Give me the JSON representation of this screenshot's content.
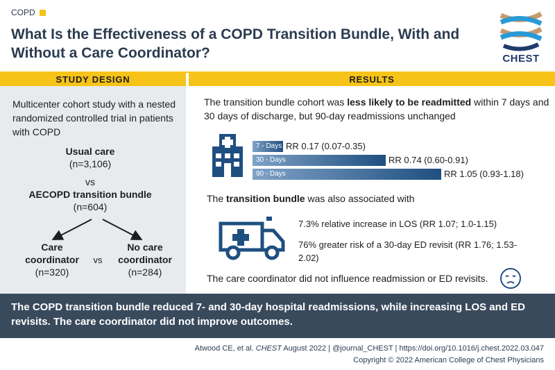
{
  "header": {
    "category": "COPD",
    "title": "What Is the Effectiveness of a COPD Transition Bundle, With and Without a Care Coordinator?",
    "logo_text": "CHEST"
  },
  "study_design": {
    "heading": "STUDY DESIGN",
    "intro": "Multicenter cohort study with a nested randomized controlled trial in patients with COPD",
    "usual_care_label": "Usual care",
    "usual_care_n": "(n=3,106)",
    "vs_1": "vs",
    "bundle_label": "AECOPD transition bundle",
    "bundle_n": "(n=604)",
    "care_coord_line1": "Care",
    "care_coord_line2": "coordinator",
    "care_coord_n": "(n=320)",
    "vs_2": "vs",
    "no_coord_line1": "No care",
    "no_coord_line2": "coordinator",
    "no_coord_n": "(n=284)"
  },
  "results": {
    "heading": "RESULTS",
    "intro_pre": "The transition bundle cohort was ",
    "intro_bold": "less likely to be readmitted",
    "intro_post": " within 7 days and 30 days of discharge, but 90-day readmissions unchanged",
    "assoc_pre": "The ",
    "assoc_bold": "transition bundle",
    "assoc_post": " was also associated with",
    "los": "7.3% relative increase in LOS (RR 1.07; 1.0-1.15)",
    "ed_revisit": "76% greater risk of a 30-day ED revisit (RR 1.76; 1.53-2.02)",
    "coordinator_note": "The care coordinator did not influence readmission or ED revisits."
  },
  "chart_data": {
    "type": "bar",
    "orientation": "horizontal",
    "categories": [
      "7 - Days",
      "30 - Days",
      "90 - Days"
    ],
    "values": [
      0.17,
      0.74,
      1.05
    ],
    "labels": [
      "RR 0.17 (0.07-0.35)",
      "RR 0.74 (0.60-0.91)",
      "RR 1.05 (0.93-1.18)"
    ],
    "ci_low": [
      0.07,
      0.6,
      0.93
    ],
    "ci_high": [
      0.35,
      0.91,
      1.18
    ],
    "title": "",
    "xlabel": "",
    "ylabel": "",
    "xlim": [
      0,
      1.05
    ]
  },
  "footer": {
    "conclusion": "The COPD transition bundle reduced 7- and 30-day hospital readmissions, while increasing LOS and ED revisits. The care coordinator did not improve outcomes.",
    "cite_authors": "Atwood CE, et al. ",
    "cite_journal": "CHEST",
    "cite_rest": " August 2022  |  @journal_CHEST  |  https://doi.org/10.1016/j.chest.2022.03.047",
    "copyright": "Copyright © 2022 American College of Chest Physicians"
  },
  "colors": {
    "accent": "#f6c319",
    "navy": "#2b3c50",
    "bar_dark": "#1f4f80",
    "bar_light": "#7fa2c7",
    "icon_blue": "#1f4f80"
  }
}
